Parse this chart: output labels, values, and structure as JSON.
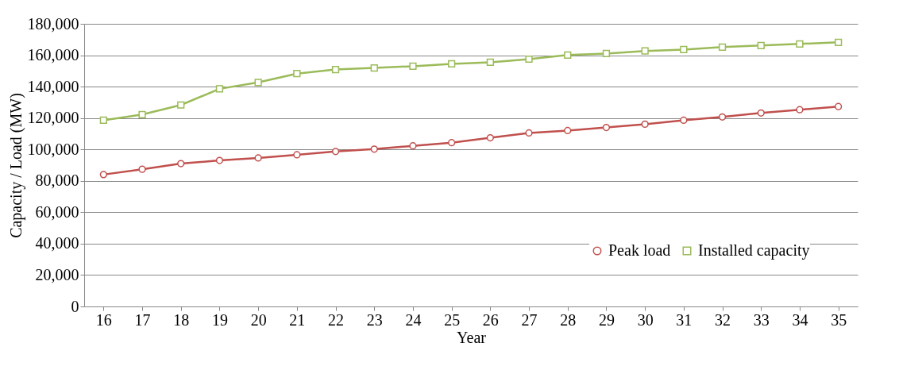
{
  "chart_data": {
    "type": "line",
    "xlabel": "Year",
    "ylabel": "Capacity / Load (MW)",
    "categories": [
      "16",
      "17",
      "18",
      "19",
      "20",
      "21",
      "22",
      "23",
      "24",
      "25",
      "26",
      "27",
      "28",
      "29",
      "30",
      "31",
      "32",
      "33",
      "34",
      "35"
    ],
    "series": [
      {
        "name": "Peak load",
        "color": "#c0504d",
        "marker": "circle",
        "values": [
          84000,
          87400,
          91000,
          93000,
          94600,
          96600,
          98700,
          100200,
          102300,
          104300,
          107400,
          110500,
          112000,
          114000,
          116100,
          118600,
          120700,
          123200,
          125300,
          127300
        ]
      },
      {
        "name": "Installed capacity",
        "color": "#9bbb59",
        "marker": "square",
        "values": [
          118600,
          122200,
          128300,
          138600,
          142700,
          148300,
          150900,
          151900,
          153000,
          154500,
          155500,
          157500,
          160100,
          161100,
          162700,
          163600,
          165200,
          166200,
          167200,
          168200
        ]
      }
    ],
    "ylim": [
      0,
      180000
    ],
    "yticks": [
      0,
      {
        "value": 20000,
        "label": "20,000"
      },
      {
        "value": 40000,
        "label": "40,000"
      },
      {
        "value": 60000,
        "label": "60,000"
      },
      {
        "value": 80000,
        "label": "80,000"
      },
      {
        "value": 100000,
        "label": "100,000"
      },
      {
        "value": 120000,
        "label": "120,000"
      },
      {
        "value": 140000,
        "label": "140,000"
      },
      {
        "value": 160000,
        "label": "160,000"
      },
      {
        "value": 180000,
        "label": "180,000"
      }
    ],
    "grid": "y",
    "legend": "bottom right",
    "line_style": "solid"
  }
}
